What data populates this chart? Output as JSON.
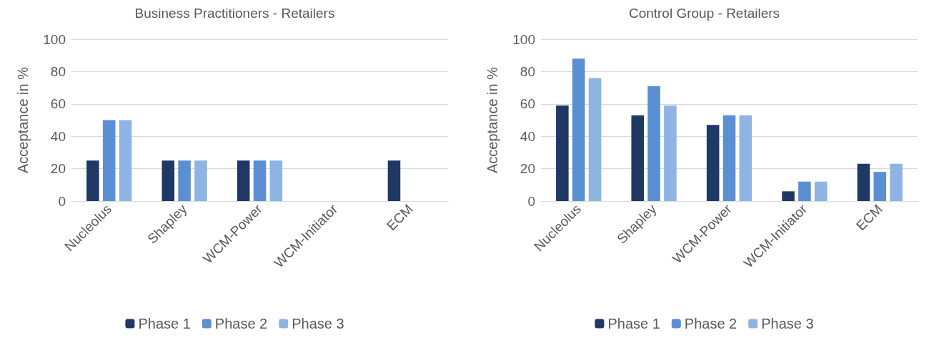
{
  "chart_data": [
    {
      "type": "bar",
      "title": "Business Practitioners - Retailers",
      "ylabel": "Acceptance in %",
      "categories": [
        "Nucleolus",
        "Shapley",
        "WCM-Power",
        "WCM-Initiator",
        "ECM"
      ],
      "series": [
        {
          "name": "Phase 1",
          "color": "#1f3864",
          "values": [
            25,
            25,
            25,
            0,
            25
          ]
        },
        {
          "name": "Phase 2",
          "color": "#5b8fd4",
          "values": [
            50,
            25,
            25,
            0,
            0
          ]
        },
        {
          "name": "Phase 3",
          "color": "#8eb4e3",
          "values": [
            50,
            25,
            25,
            0,
            0
          ]
        }
      ],
      "ylim": [
        0,
        100
      ],
      "yticks": [
        0,
        20,
        40,
        60,
        80,
        100
      ],
      "grid": "y",
      "legend": "bottom"
    },
    {
      "type": "bar",
      "title": "Control Group - Retailers",
      "ylabel": "Acceptance in %",
      "categories": [
        "Nucleolus",
        "Shapley",
        "WCM-Power",
        "WCM-Initiator",
        "ECM"
      ],
      "series": [
        {
          "name": "Phase 1",
          "color": "#1f3864",
          "values": [
            59,
            53,
            47,
            6,
            23
          ]
        },
        {
          "name": "Phase 2",
          "color": "#5b8fd4",
          "values": [
            88,
            71,
            53,
            12,
            18
          ]
        },
        {
          "name": "Phase 3",
          "color": "#8eb4e3",
          "values": [
            76,
            59,
            53,
            12,
            23
          ]
        }
      ],
      "ylim": [
        0,
        100
      ],
      "yticks": [
        0,
        20,
        40,
        60,
        80,
        100
      ],
      "grid": "y",
      "legend": "bottom"
    }
  ]
}
